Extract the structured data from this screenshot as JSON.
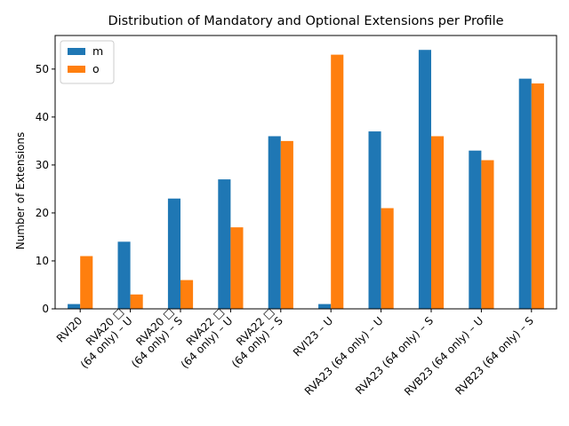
{
  "chart_data": {
    "type": "bar",
    "title": "Distribution of Mandatory and Optional Extensions per Profile",
    "xlabel": "",
    "ylabel": "Number of Extensions",
    "ylim": [
      0,
      57
    ],
    "yticks": [
      0,
      10,
      20,
      30,
      40,
      50
    ],
    "grid": false,
    "legend_position": "top-left",
    "categories": [
      "RVI20",
      "RVA20 □\n(64 only) – U",
      "RVA20 □\n(64 only) – S",
      "RVA22 □\n(64 only) – U",
      "RVA22 □\n(64 only) – S",
      "RVI23 – U",
      "RVA23 (64 only) – U",
      "RVA23 (64 only) – S",
      "RVB23 (64 only) – U",
      "RVB23 (64 only) – S"
    ],
    "series": [
      {
        "name": "m",
        "color": "#1f77b4",
        "values": [
          1,
          14,
          23,
          27,
          36,
          1,
          37,
          54,
          33,
          48
        ]
      },
      {
        "name": "o",
        "color": "#ff7f0e",
        "values": [
          11,
          3,
          6,
          17,
          35,
          53,
          21,
          36,
          31,
          47
        ]
      }
    ]
  }
}
